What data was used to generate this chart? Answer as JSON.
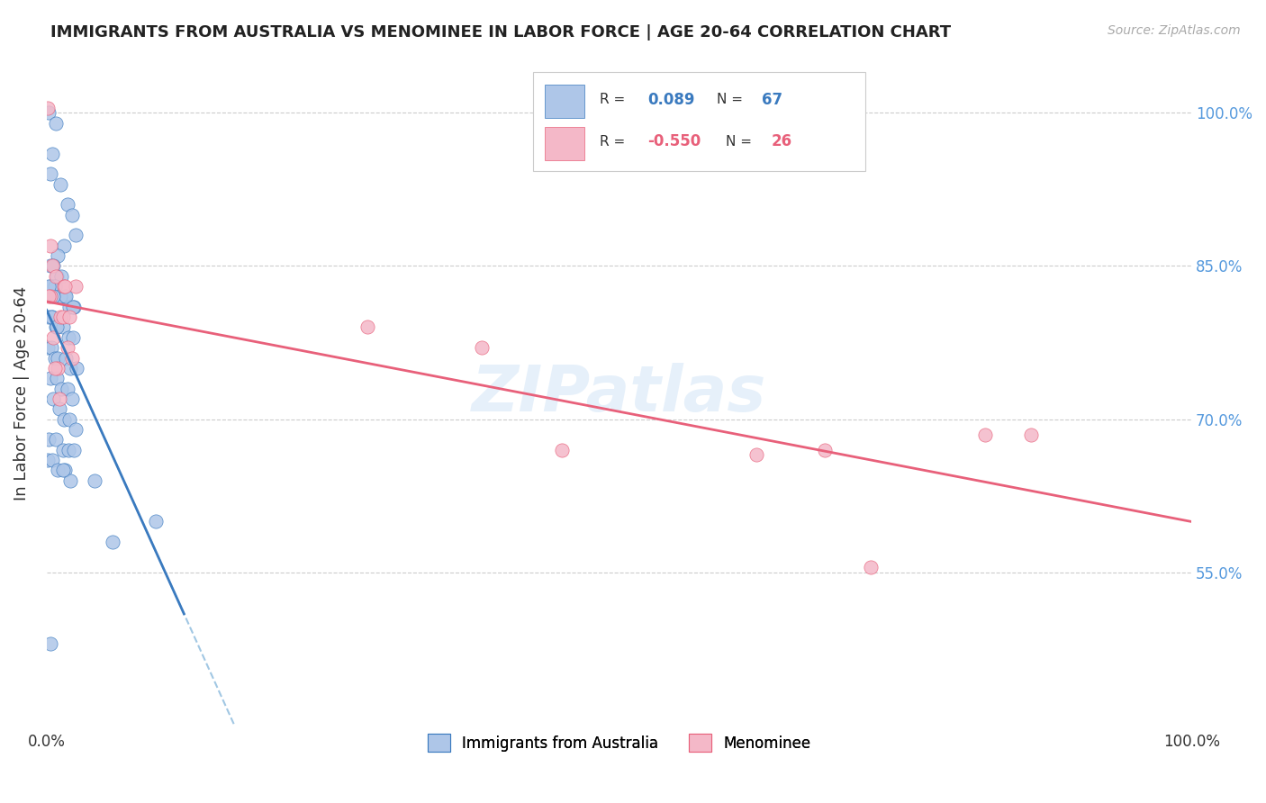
{
  "title": "IMMIGRANTS FROM AUSTRALIA VS MENOMINEE IN LABOR FORCE | AGE 20-64 CORRELATION CHART",
  "source": "Source: ZipAtlas.com",
  "ylabel": "In Labor Force | Age 20-64",
  "xlim": [
    0.0,
    1.0
  ],
  "ylim": [
    0.4,
    1.05
  ],
  "yticks": [
    0.55,
    0.7,
    0.85,
    1.0
  ],
  "ytick_labels": [
    "55.0%",
    "70.0%",
    "85.0%",
    "100.0%"
  ],
  "blue_R": "0.089",
  "blue_N": "67",
  "pink_R": "-0.550",
  "pink_N": "26",
  "blue_color": "#aec6e8",
  "blue_line_color": "#3a7abf",
  "blue_dashed_color": "#7ab0d8",
  "pink_color": "#f4b8c8",
  "pink_line_color": "#e8607a",
  "watermark": "ZIPatlas",
  "legend_label_blue": "Immigrants from Australia",
  "legend_label_pink": "Menominee",
  "blue_scatter_x": [
    0.002,
    0.008,
    0.005,
    0.003,
    0.012,
    0.018,
    0.022,
    0.025,
    0.015,
    0.01,
    0.003,
    0.006,
    0.009,
    0.013,
    0.007,
    0.004,
    0.011,
    0.016,
    0.02,
    0.024,
    0.002,
    0.005,
    0.008,
    0.014,
    0.019,
    0.023,
    0.001,
    0.004,
    0.007,
    0.01,
    0.017,
    0.021,
    0.026,
    0.003,
    0.009,
    0.013,
    0.018,
    0.022,
    0.006,
    0.011,
    0.015,
    0.02,
    0.025,
    0.002,
    0.008,
    0.014,
    0.019,
    0.024,
    0.001,
    0.005,
    0.01,
    0.016,
    0.021,
    0.003,
    0.007,
    0.012,
    0.017,
    0.023,
    0.004,
    0.009,
    0.014,
    0.042,
    0.058,
    0.095,
    0.003,
    0.006,
    0.002
  ],
  "blue_scatter_y": [
    1.0,
    0.99,
    0.96,
    0.94,
    0.93,
    0.91,
    0.9,
    0.88,
    0.87,
    0.86,
    0.85,
    0.85,
    0.84,
    0.84,
    0.83,
    0.83,
    0.82,
    0.82,
    0.81,
    0.81,
    0.8,
    0.8,
    0.79,
    0.79,
    0.78,
    0.78,
    0.77,
    0.77,
    0.76,
    0.76,
    0.76,
    0.75,
    0.75,
    0.74,
    0.74,
    0.73,
    0.73,
    0.72,
    0.72,
    0.71,
    0.7,
    0.7,
    0.69,
    0.68,
    0.68,
    0.67,
    0.67,
    0.67,
    0.66,
    0.66,
    0.65,
    0.65,
    0.64,
    0.83,
    0.83,
    0.82,
    0.82,
    0.81,
    0.8,
    0.79,
    0.65,
    0.64,
    0.58,
    0.6,
    0.48,
    0.82,
    0.83
  ],
  "pink_scatter_x": [
    0.001,
    0.003,
    0.005,
    0.008,
    0.012,
    0.015,
    0.018,
    0.025,
    0.003,
    0.006,
    0.01,
    0.014,
    0.02,
    0.002,
    0.007,
    0.011,
    0.016,
    0.022,
    0.28,
    0.38,
    0.45,
    0.62,
    0.68,
    0.72,
    0.82,
    0.86
  ],
  "pink_scatter_y": [
    1.005,
    0.87,
    0.85,
    0.84,
    0.8,
    0.83,
    0.77,
    0.83,
    0.82,
    0.78,
    0.75,
    0.8,
    0.8,
    0.82,
    0.75,
    0.72,
    0.83,
    0.76,
    0.79,
    0.77,
    0.67,
    0.665,
    0.67,
    0.555,
    0.685,
    0.685
  ]
}
